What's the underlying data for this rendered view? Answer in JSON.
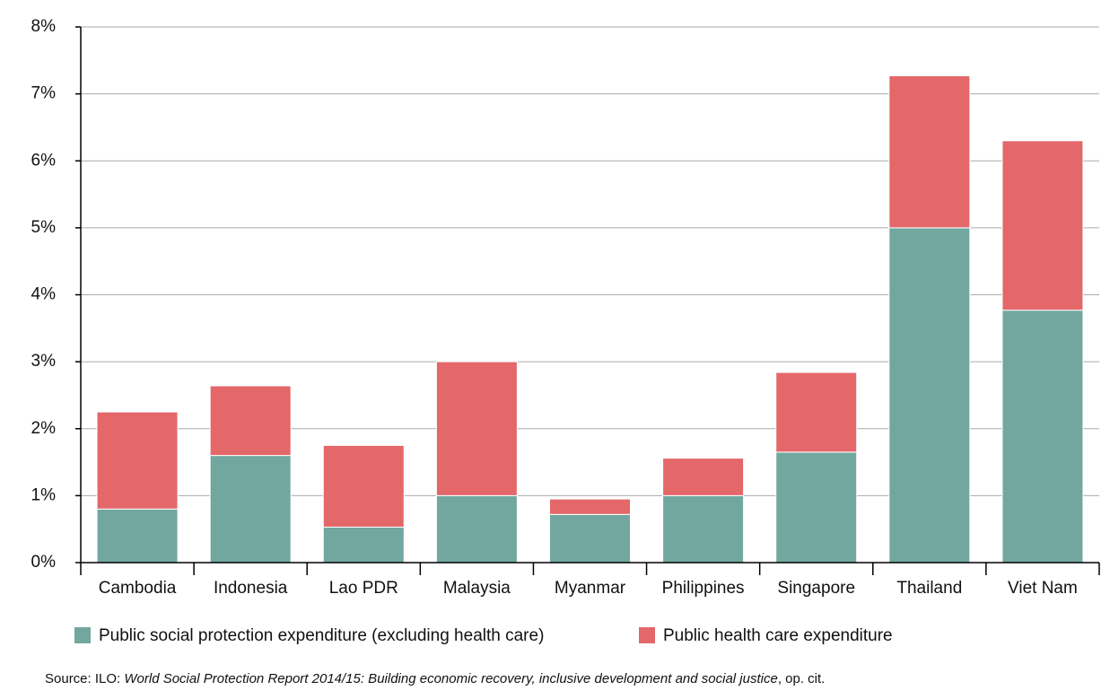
{
  "chart_data": {
    "type": "stacked_bar",
    "categories": [
      "Cambodia",
      "Indonesia",
      "Lao PDR",
      "Malaysia",
      "Myanmar",
      "Philippines",
      "Singapore",
      "Thailand",
      "Viet Nam"
    ],
    "series": [
      {
        "name": "Public social protection expenditure (excluding health care)",
        "color": "#72a7a0",
        "values": [
          0.8,
          1.6,
          0.53,
          1.0,
          0.72,
          1.0,
          1.65,
          5.0,
          3.77
        ]
      },
      {
        "name": "Public health care expenditure",
        "color": "#e4676a",
        "values": [
          1.45,
          1.04,
          1.22,
          2.0,
          0.23,
          0.56,
          1.19,
          2.27,
          2.53
        ]
      }
    ],
    "ylim": [
      0,
      8
    ],
    "yticks": [
      {
        "value": 0,
        "label": "0%"
      },
      {
        "value": 1,
        "label": "1%"
      },
      {
        "value": 2,
        "label": "2%"
      },
      {
        "value": 3,
        "label": "3%"
      },
      {
        "value": 4,
        "label": "4%"
      },
      {
        "value": 5,
        "label": "5%"
      },
      {
        "value": 6,
        "label": "6%"
      },
      {
        "value": 7,
        "label": "7%"
      },
      {
        "value": 8,
        "label": "8%"
      }
    ],
    "grid": true,
    "source": [
      "Source: ILO: ",
      "World Social Protection Report 2014/15: Building economic recovery, inclusive development and social justice",
      ", op. cit."
    ]
  }
}
